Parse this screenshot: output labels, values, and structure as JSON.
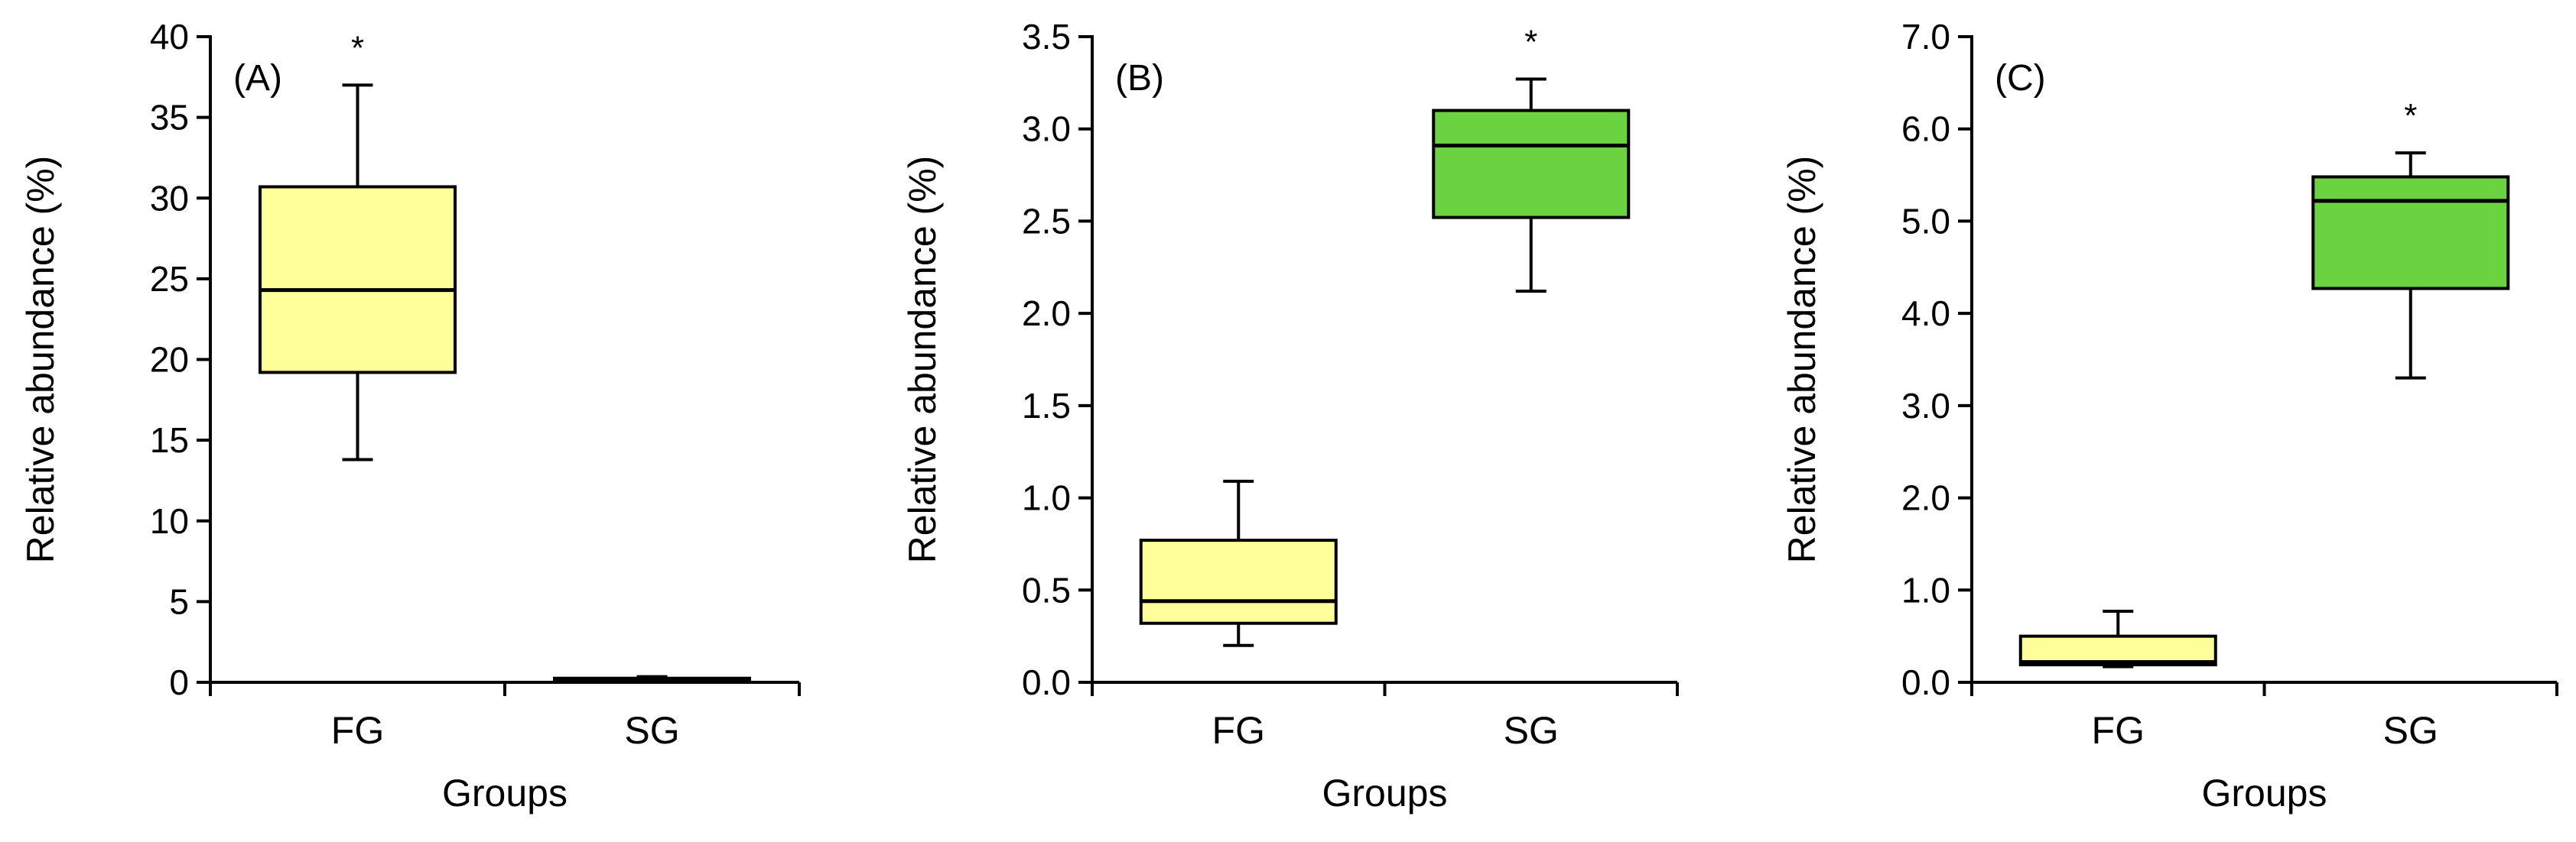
{
  "chart_data": [
    {
      "type": "boxplot",
      "panel_label": "(A)",
      "xlabel": "Groups",
      "ylabel": "Relative abundance (%)",
      "ylim": [
        0,
        40
      ],
      "yticks": [
        "0",
        "5",
        "10",
        "15",
        "20",
        "25",
        "30",
        "35",
        "40"
      ],
      "categories": [
        "FG",
        "SG"
      ],
      "boxes": [
        {
          "group": "FG",
          "min": 13.8,
          "q1": 19.2,
          "median": 24.3,
          "q3": 30.7,
          "max": 37.0,
          "color": "#FFFF99",
          "significant": true
        },
        {
          "group": "SG",
          "min": 0.1,
          "q1": 0.12,
          "median": 0.18,
          "q3": 0.25,
          "max": 0.35,
          "color": "#FFFF99",
          "significant": false
        }
      ]
    },
    {
      "type": "boxplot",
      "panel_label": "(B)",
      "xlabel": "Groups",
      "ylabel": "Relative abundance (%)",
      "ylim": [
        0,
        3.5
      ],
      "yticks": [
        "0.0",
        "0.5",
        "1.0",
        "1.5",
        "2.0",
        "2.5",
        "3.0",
        "3.5"
      ],
      "categories": [
        "FG",
        "SG"
      ],
      "boxes": [
        {
          "group": "FG",
          "min": 0.2,
          "q1": 0.32,
          "median": 0.44,
          "q3": 0.77,
          "max": 1.09,
          "color": "#FFFF99",
          "significant": false
        },
        {
          "group": "SG",
          "min": 2.12,
          "q1": 2.52,
          "median": 2.91,
          "q3": 3.1,
          "max": 3.27,
          "color": "#6CD340",
          "significant": true
        }
      ]
    },
    {
      "type": "boxplot",
      "panel_label": "(C)",
      "xlabel": "Groups",
      "ylabel": "Relative abundance (%)",
      "ylim": [
        0,
        7
      ],
      "yticks": [
        "0.0",
        "1.0",
        "2.0",
        "3.0",
        "4.0",
        "5.0",
        "6.0",
        "7.0"
      ],
      "categories": [
        "FG",
        "SG"
      ],
      "boxes": [
        {
          "group": "FG",
          "min": 0.17,
          "q1": 0.19,
          "median": 0.22,
          "q3": 0.5,
          "max": 0.77,
          "color": "#FFFF99",
          "significant": false
        },
        {
          "group": "SG",
          "min": 3.3,
          "q1": 4.27,
          "median": 5.22,
          "q3": 5.48,
          "max": 5.74,
          "color": "#6CD340",
          "significant": true
        }
      ]
    }
  ],
  "significance_marker": "*"
}
